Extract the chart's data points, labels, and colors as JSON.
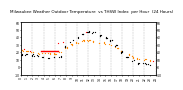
{
  "title": "Milwaukee Weather Outdoor Temperature vs THSW Index per Hour (24 Hours)",
  "title_fontsize": 3.0,
  "bg_color": "#ffffff",
  "plot_bg": "#ffffff",
  "ylim": [
    -10,
    60
  ],
  "xlim": [
    0,
    48
  ],
  "temp_color": "#ff8800",
  "thsw_color": "#000000",
  "red_color": "#ff0000",
  "grid_color": "#bbbbbb",
  "tick_fontsize": 2.2,
  "marker_size": 0.9,
  "ytick_values": [
    60,
    50,
    40,
    30,
    20,
    10,
    0,
    -10
  ],
  "ytick_labels": [
    "60",
    "50",
    "40",
    "30",
    "20",
    "10",
    "0",
    "-10"
  ],
  "hours": [
    0,
    1,
    2,
    3,
    4,
    5,
    6,
    7,
    8,
    9,
    10,
    11,
    12,
    13,
    14,
    15,
    16,
    17,
    18,
    19,
    20,
    21,
    22,
    23
  ],
  "temp_vals": [
    22,
    21,
    20,
    19,
    19,
    18,
    18,
    20,
    26,
    30,
    33,
    35,
    36,
    35,
    33,
    32,
    30,
    26,
    22,
    18,
    14,
    11,
    10,
    9
  ],
  "thsw_vals": [
    18,
    17,
    16,
    15,
    14,
    13,
    13,
    14,
    28,
    35,
    40,
    45,
    47,
    46,
    43,
    40,
    36,
    29,
    20,
    13,
    8,
    5,
    4,
    3
  ],
  "red_line_x": [
    3.5,
    6.5
  ],
  "red_line_y": [
    22,
    22
  ],
  "xtick_step": 2,
  "vgrid_positions": [
    0,
    4,
    8,
    12,
    16,
    20,
    24,
    28,
    32,
    36,
    40,
    44,
    48
  ]
}
